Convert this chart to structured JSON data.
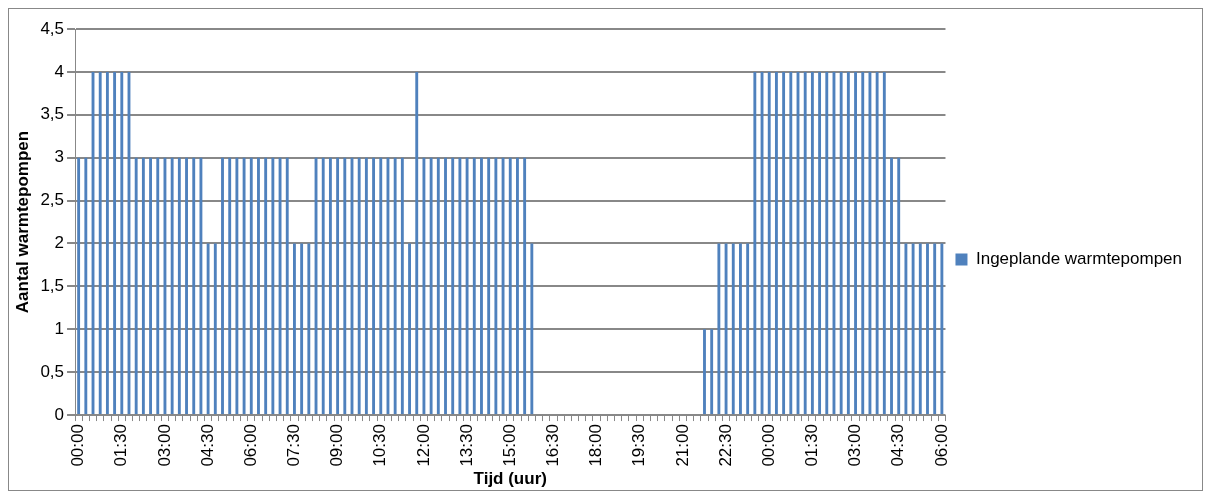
{
  "chart_data": {
    "type": "bar",
    "xlabel": "Tijd (uur)",
    "ylabel": "Aantal warmtepompen",
    "categories": [
      "00:00",
      null,
      null,
      null,
      null,
      null,
      "01:30",
      null,
      null,
      null,
      null,
      null,
      "03:00",
      null,
      null,
      null,
      null,
      null,
      "04:30",
      null,
      null,
      null,
      null,
      null,
      "06:00",
      null,
      null,
      null,
      null,
      null,
      "07:30",
      null,
      null,
      null,
      null,
      null,
      "09:00",
      null,
      null,
      null,
      null,
      null,
      "10:30",
      null,
      null,
      null,
      null,
      null,
      "12:00",
      null,
      null,
      null,
      null,
      null,
      "13:30",
      null,
      null,
      null,
      null,
      null,
      "15:00",
      null,
      null,
      null,
      null,
      null,
      "16:30",
      null,
      null,
      null,
      null,
      null,
      "18:00",
      null,
      null,
      null,
      null,
      null,
      "19:30",
      null,
      null,
      null,
      null,
      null,
      "21:00",
      null,
      null,
      null,
      null,
      null,
      "22:30",
      null,
      null,
      null,
      null,
      null,
      "00:00",
      null,
      null,
      null,
      null,
      null,
      "01:30",
      null,
      null,
      null,
      null,
      null,
      "03:00",
      null,
      null,
      null,
      null,
      null,
      "04:30",
      null,
      null,
      null,
      null,
      null,
      "06:00"
    ],
    "series": [
      {
        "name": "Ingeplande warmtepompen",
        "color": "#4f81bd",
        "values": [
          3,
          3,
          4,
          4,
          4,
          4,
          4,
          4,
          3,
          3,
          3,
          3,
          3,
          3,
          3,
          3,
          3,
          3,
          2,
          2,
          3,
          3,
          3,
          3,
          3,
          3,
          3,
          3,
          3,
          3,
          2,
          2,
          2,
          3,
          3,
          3,
          3,
          3,
          3,
          3,
          3,
          3,
          3,
          3,
          3,
          3,
          2,
          4,
          3,
          3,
          3,
          3,
          3,
          3,
          3,
          3,
          3,
          3,
          3,
          3,
          3,
          3,
          3,
          2,
          0,
          0,
          0,
          0,
          0,
          0,
          0,
          0,
          0,
          0,
          0,
          0,
          0,
          0,
          0,
          0,
          0,
          0,
          0,
          0,
          0,
          0,
          0,
          1,
          1,
          2,
          2,
          2,
          2,
          2,
          4,
          4,
          4,
          4,
          4,
          4,
          4,
          4,
          4,
          4,
          4,
          4,
          4,
          4,
          4,
          4,
          4,
          4,
          4,
          3,
          3,
          2,
          2,
          2,
          2,
          2,
          2
        ]
      }
    ],
    "ylim": [
      0,
      4.5
    ],
    "yticks": [
      0,
      {
        "value": 0.5,
        "label": "0,5"
      },
      1,
      {
        "value": 1.5,
        "label": "1,5"
      },
      2,
      {
        "value": 2.5,
        "label": "2,5"
      },
      3,
      {
        "value": 3.5,
        "label": "3,5"
      },
      4,
      {
        "value": 4.5,
        "label": "4,5"
      }
    ],
    "grid": "y",
    "legend": "right"
  }
}
